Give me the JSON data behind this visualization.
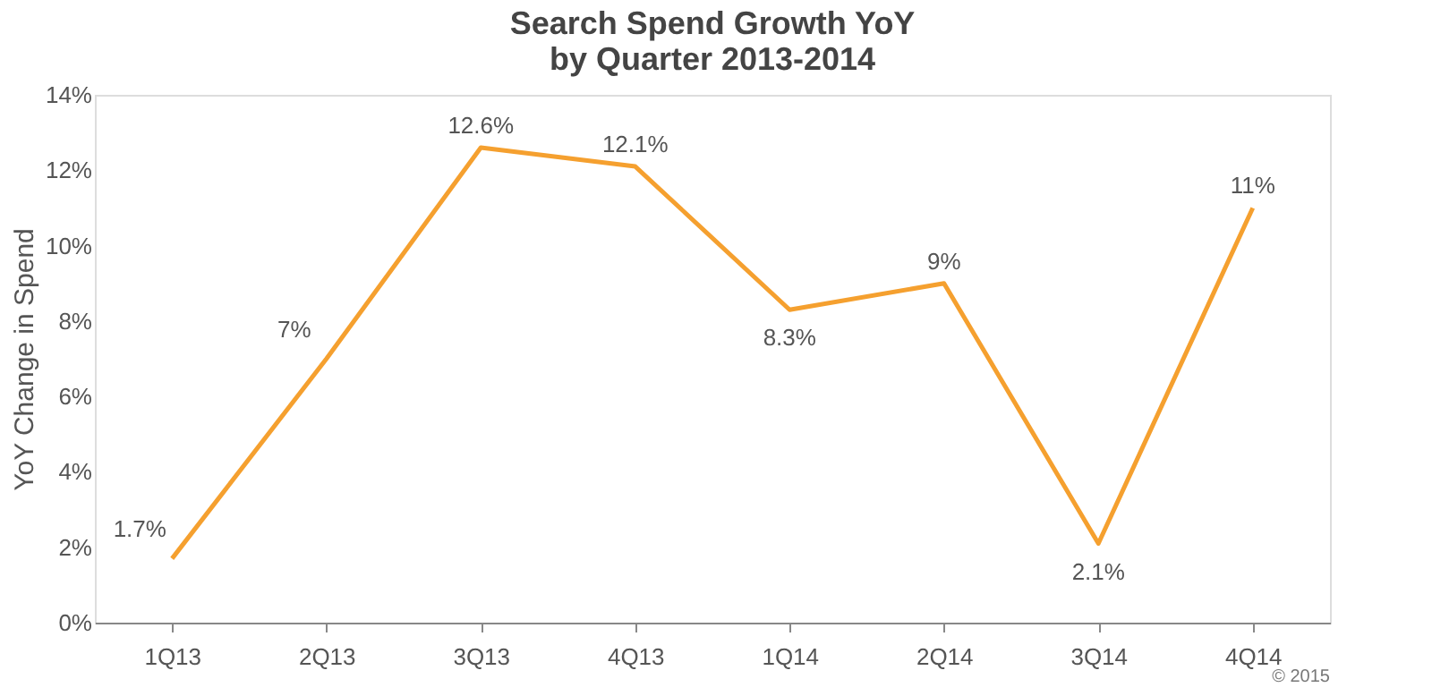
{
  "chart_data": {
    "type": "line",
    "title": "Search Spend Growth YoY\nby Quarter 2013-2014",
    "ylabel": "YoY Change in Spend",
    "categories": [
      "1Q13",
      "2Q13",
      "3Q13",
      "4Q13",
      "1Q14",
      "2Q14",
      "3Q14",
      "4Q14"
    ],
    "series": [
      {
        "color": "#f5a02f",
        "values": [
          1.7,
          7,
          12.6,
          12.1,
          8.3,
          9,
          2.1,
          11
        ],
        "value_labels": [
          "1.7%",
          "7%",
          "12.6%",
          "12.1%",
          "8.3%",
          "9%",
          "2.1%",
          "11%"
        ]
      }
    ],
    "ylim": [
      0,
      14
    ],
    "yticks": [
      {
        "value": 0,
        "label": "0%"
      },
      {
        "value": 2,
        "label": "2%"
      },
      {
        "value": 4,
        "label": "4%"
      },
      {
        "value": 6,
        "label": "6%"
      },
      {
        "value": 8,
        "label": "8%"
      },
      {
        "value": 10,
        "label": "10%"
      },
      {
        "value": 12,
        "label": "12%"
      },
      {
        "value": 14,
        "label": "14%"
      }
    ],
    "grid": false,
    "marker": "none",
    "line_style": "solid",
    "annotations": [
      "© 2015"
    ]
  }
}
